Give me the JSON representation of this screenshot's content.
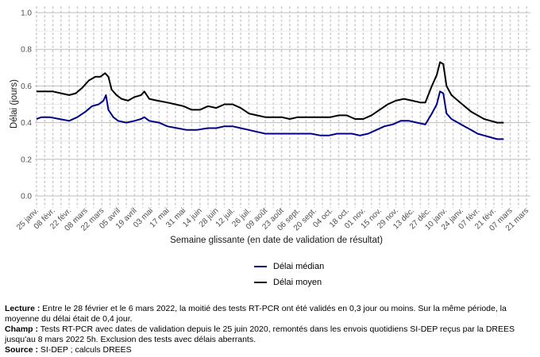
{
  "chart_data": {
    "type": "line",
    "xlabel": "Semaine glissante (en date de validation de résultat)",
    "ylabel": "Délai (jours)",
    "ylim": [
      0,
      1.0
    ],
    "yticks": [
      "0.0",
      "0.2",
      "0.4",
      "0.6",
      "0.8",
      "1.0"
    ],
    "xticks": [
      "25 janv.",
      "08 févr.",
      "22 févr.",
      "08 mars",
      "22 mars",
      "05 avril",
      "19 avril",
      "03 mai",
      "17 mai",
      "31 mai",
      "14 juin",
      "28 juin",
      "12 juil.",
      "26 juil.",
      "09 août",
      "23 août",
      "06 sept.",
      "20 sept.",
      "04 oct.",
      "18 oct.",
      "01 nov.",
      "15 nov.",
      "29 nov.",
      "13 déc.",
      "27 déc.",
      "10 janv.",
      "24 janv.",
      "07 févr.",
      "21 févr.",
      "07 mars",
      "21 mars"
    ],
    "grid": true,
    "legend_position": "bottom",
    "series": [
      {
        "name": "Délai médian",
        "color": "#00008b",
        "points": [
          [
            0.0,
            0.42
          ],
          [
            0.3,
            0.43
          ],
          [
            0.8,
            0.43
          ],
          [
            1.4,
            0.42
          ],
          [
            2.0,
            0.41
          ],
          [
            2.5,
            0.43
          ],
          [
            3.0,
            0.46
          ],
          [
            3.4,
            0.49
          ],
          [
            3.8,
            0.5
          ],
          [
            4.1,
            0.52
          ],
          [
            4.25,
            0.55
          ],
          [
            4.4,
            0.47
          ],
          [
            4.7,
            0.43
          ],
          [
            5.0,
            0.41
          ],
          [
            5.5,
            0.4
          ],
          [
            6.0,
            0.41
          ],
          [
            6.4,
            0.42
          ],
          [
            6.6,
            0.43
          ],
          [
            6.9,
            0.41
          ],
          [
            7.5,
            0.4
          ],
          [
            8.0,
            0.38
          ],
          [
            8.6,
            0.37
          ],
          [
            9.2,
            0.36
          ],
          [
            9.8,
            0.36
          ],
          [
            10.5,
            0.37
          ],
          [
            11.0,
            0.37
          ],
          [
            11.5,
            0.38
          ],
          [
            12.0,
            0.38
          ],
          [
            12.5,
            0.37
          ],
          [
            13.0,
            0.36
          ],
          [
            13.5,
            0.35
          ],
          [
            14.0,
            0.34
          ],
          [
            14.5,
            0.34
          ],
          [
            15.0,
            0.34
          ],
          [
            15.6,
            0.34
          ],
          [
            16.2,
            0.34
          ],
          [
            16.8,
            0.34
          ],
          [
            17.4,
            0.33
          ],
          [
            17.9,
            0.33
          ],
          [
            18.4,
            0.34
          ],
          [
            18.8,
            0.34
          ],
          [
            19.3,
            0.34
          ],
          [
            19.8,
            0.33
          ],
          [
            20.3,
            0.34
          ],
          [
            20.8,
            0.36
          ],
          [
            21.3,
            0.38
          ],
          [
            21.8,
            0.39
          ],
          [
            22.3,
            0.41
          ],
          [
            22.8,
            0.41
          ],
          [
            23.3,
            0.4
          ],
          [
            23.8,
            0.39
          ],
          [
            24.2,
            0.45
          ],
          [
            24.5,
            0.5
          ],
          [
            24.7,
            0.57
          ],
          [
            24.9,
            0.56
          ],
          [
            25.1,
            0.45
          ],
          [
            25.4,
            0.42
          ],
          [
            25.8,
            0.4
          ],
          [
            26.2,
            0.38
          ],
          [
            26.6,
            0.36
          ],
          [
            27.0,
            0.34
          ],
          [
            27.4,
            0.33
          ],
          [
            27.8,
            0.32
          ],
          [
            28.2,
            0.31
          ],
          [
            28.6,
            0.31
          ]
        ]
      },
      {
        "name": "Délai moyen",
        "color": "#000000",
        "points": [
          [
            0.0,
            0.57
          ],
          [
            0.5,
            0.57
          ],
          [
            1.0,
            0.57
          ],
          [
            1.5,
            0.56
          ],
          [
            2.0,
            0.55
          ],
          [
            2.4,
            0.56
          ],
          [
            2.8,
            0.59
          ],
          [
            3.2,
            0.63
          ],
          [
            3.6,
            0.65
          ],
          [
            3.9,
            0.65
          ],
          [
            4.2,
            0.67
          ],
          [
            4.4,
            0.65
          ],
          [
            4.6,
            0.58
          ],
          [
            4.9,
            0.55
          ],
          [
            5.2,
            0.53
          ],
          [
            5.6,
            0.52
          ],
          [
            6.0,
            0.54
          ],
          [
            6.4,
            0.55
          ],
          [
            6.6,
            0.57
          ],
          [
            6.9,
            0.53
          ],
          [
            7.4,
            0.52
          ],
          [
            8.0,
            0.51
          ],
          [
            8.5,
            0.5
          ],
          [
            9.0,
            0.49
          ],
          [
            9.5,
            0.47
          ],
          [
            10.0,
            0.47
          ],
          [
            10.5,
            0.49
          ],
          [
            11.0,
            0.48
          ],
          [
            11.5,
            0.5
          ],
          [
            12.0,
            0.5
          ],
          [
            12.5,
            0.48
          ],
          [
            13.0,
            0.45
          ],
          [
            13.5,
            0.44
          ],
          [
            14.0,
            0.43
          ],
          [
            14.5,
            0.43
          ],
          [
            15.0,
            0.43
          ],
          [
            15.5,
            0.42
          ],
          [
            16.0,
            0.43
          ],
          [
            16.5,
            0.43
          ],
          [
            17.0,
            0.43
          ],
          [
            17.5,
            0.43
          ],
          [
            18.0,
            0.43
          ],
          [
            18.5,
            0.44
          ],
          [
            19.0,
            0.44
          ],
          [
            19.5,
            0.42
          ],
          [
            20.0,
            0.42
          ],
          [
            20.5,
            0.44
          ],
          [
            21.0,
            0.47
          ],
          [
            21.5,
            0.5
          ],
          [
            22.0,
            0.52
          ],
          [
            22.5,
            0.53
          ],
          [
            23.0,
            0.52
          ],
          [
            23.5,
            0.51
          ],
          [
            23.8,
            0.51
          ],
          [
            24.2,
            0.6
          ],
          [
            24.5,
            0.66
          ],
          [
            24.7,
            0.73
          ],
          [
            24.9,
            0.72
          ],
          [
            25.1,
            0.6
          ],
          [
            25.4,
            0.55
          ],
          [
            25.8,
            0.52
          ],
          [
            26.2,
            0.49
          ],
          [
            26.6,
            0.46
          ],
          [
            27.0,
            0.44
          ],
          [
            27.4,
            0.42
          ],
          [
            27.8,
            0.41
          ],
          [
            28.2,
            0.4
          ],
          [
            28.6,
            0.4
          ]
        ]
      }
    ]
  },
  "notes": {
    "lecture_label": "Lecture :",
    "lecture_text": " Entre le 28 février et le 6 mars 2022, la moitié des tests RT-PCR ont été validés en 0,3 jour ou moins. Sur la même période, la moyenne du délai était de 0,4 jour.",
    "champ_label": "Champ :",
    "champ_text": " Tests RT-PCR avec dates de validation depuis le 25 juin 2020, remontés dans les envois quotidiens SI-DEP reçus par la DREES jusqu'au 8 mars 2022 5h. Exclusion des tests avec délais aberrants.",
    "source_label": "Source :",
    "source_text": " SI-DEP ; calculs DREES"
  }
}
